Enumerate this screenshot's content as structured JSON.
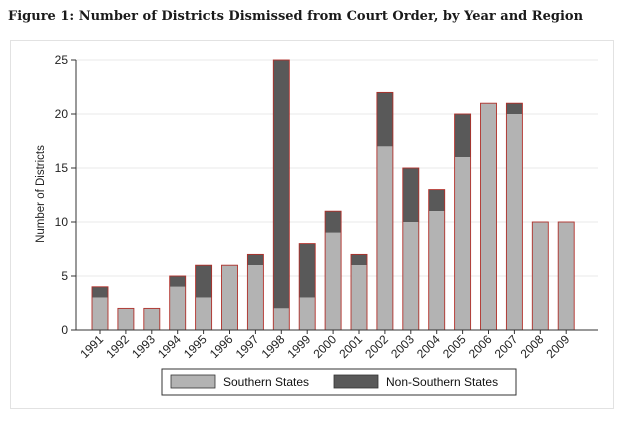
{
  "figure": {
    "title": "Figure 1: Number of Districts Dismissed from Court Order, by Year and Region"
  },
  "colors": {
    "southern": "#b3b3b3",
    "non_southern": "#595959",
    "bar_outline": "#b0302a",
    "gridline": "#e8e8e8",
    "axis": "#333333"
  },
  "chart_data": {
    "type": "bar",
    "stacked": true,
    "title": "Figure 1: Number of Districts Dismissed from Court Order, by Year and Region",
    "xlabel": "",
    "ylabel": "Number of Districts",
    "ylim": [
      0,
      25
    ],
    "yticks": [
      0,
      5,
      10,
      15,
      20,
      25
    ],
    "grid": true,
    "legend_position": "bottom",
    "categories": [
      "1991",
      "1992",
      "1993",
      "1994",
      "1995",
      "1996",
      "1997",
      "1998",
      "1999",
      "2000",
      "2001",
      "2002",
      "2003",
      "2004",
      "2005",
      "2006",
      "2007",
      "2008",
      "2009"
    ],
    "series": [
      {
        "name": "Southern States",
        "values": [
          3,
          2,
          2,
          4,
          3,
          6,
          6,
          2,
          3,
          9,
          6,
          17,
          10,
          11,
          16,
          21,
          20,
          10,
          10
        ]
      },
      {
        "name": "Non-Southern States",
        "values": [
          1,
          0,
          0,
          1,
          3,
          0,
          1,
          23,
          5,
          2,
          1,
          5,
          5,
          2,
          4,
          0,
          1,
          0,
          0
        ]
      }
    ]
  }
}
